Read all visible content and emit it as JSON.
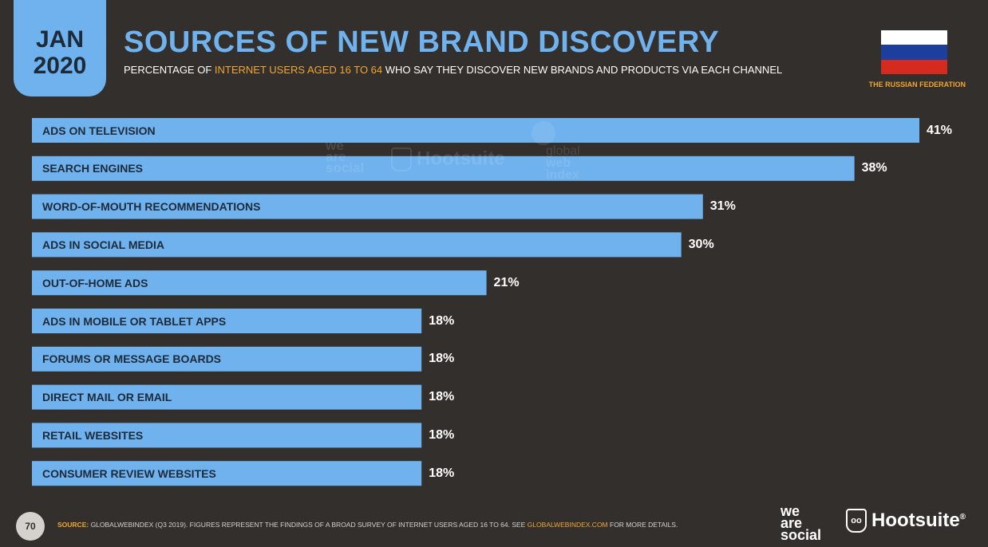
{
  "header": {
    "month": "JAN",
    "year": "2020",
    "title": "SOURCES OF NEW BRAND DISCOVERY",
    "subtitle_pre": "PERCENTAGE OF ",
    "subtitle_highlight": "INTERNET USERS AGED 16 TO 64",
    "subtitle_post": " WHO SAY THEY DISCOVER NEW BRANDS AND PRODUCTS VIA EACH CHANNEL",
    "country": "THE RUSSIAN FEDERATION"
  },
  "colors": {
    "background": "#332f2c",
    "bar": "#6fb2ee",
    "accent": "#f2a531",
    "flag_white": "#ffffff",
    "flag_blue": "#1c3f9e",
    "flag_red": "#d52b1e"
  },
  "watermarks": {
    "was": [
      "we",
      "are",
      "social"
    ],
    "hootsuite": "Hootsuite",
    "gwi": [
      "global",
      "web",
      "index"
    ]
  },
  "chart_data": {
    "type": "bar",
    "orientation": "horizontal",
    "categories": [
      "ADS ON TELEVISION",
      "SEARCH ENGINES",
      "WORD-OF-MOUTH RECOMMENDATIONS",
      "ADS IN SOCIAL MEDIA",
      "OUT-OF-HOME ADS",
      "ADS IN MOBILE OR TABLET APPS",
      "FORUMS OR MESSAGE BOARDS",
      "DIRECT MAIL OR EMAIL",
      "RETAIL WEBSITES",
      "CONSUMER REVIEW WEBSITES"
    ],
    "values": [
      41,
      38,
      31,
      30,
      21,
      18,
      18,
      18,
      18,
      18
    ],
    "value_labels": [
      "41%",
      "38%",
      "31%",
      "30%",
      "21%",
      "18%",
      "18%",
      "18%",
      "18%",
      "18%"
    ],
    "value_unit": "%",
    "grid": false
  },
  "footer": {
    "page_number": "70",
    "source_label": "SOURCE:",
    "source_text": " GLOBALWEBINDEX (Q3 2019). FIGURES REPRESENT THE FINDINGS OF A BROAD SURVEY OF INTERNET USERS AGED 16 TO 64. SEE ",
    "source_link": "GLOBALWEBINDEX.COM",
    "source_tail": " FOR MORE DETAILS.",
    "logo_was": [
      "we",
      "are",
      "social"
    ],
    "logo_hootsuite": "Hootsuite",
    "logo_hootsuite_mark": "®"
  }
}
